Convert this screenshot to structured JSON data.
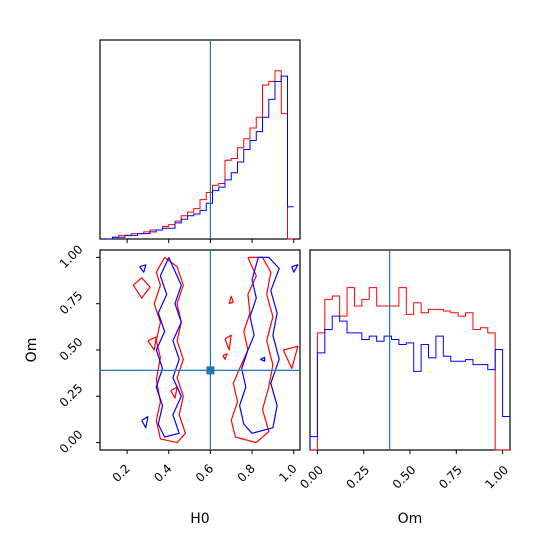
{
  "chart_data": [
    {
      "id": "H0-marginal",
      "type": "histogram",
      "xlabel": "",
      "ylabel": "",
      "xlim": [
        0.07,
        1.03
      ],
      "truth": 0.6,
      "truth_color": "#1f77b4",
      "bin_edges": [
        0.1,
        0.13,
        0.16,
        0.19,
        0.22,
        0.25,
        0.28,
        0.31,
        0.34,
        0.37,
        0.4,
        0.43,
        0.46,
        0.49,
        0.52,
        0.55,
        0.58,
        0.61,
        0.64,
        0.67,
        0.7,
        0.73,
        0.76,
        0.79,
        0.82,
        0.85,
        0.88,
        0.91,
        0.94,
        0.97,
        1.0
      ],
      "series": [
        {
          "color": "#ff0000",
          "values": [
            0.0,
            0.01,
            0.02,
            0.02,
            0.03,
            0.03,
            0.04,
            0.05,
            0.05,
            0.07,
            0.08,
            0.1,
            0.13,
            0.15,
            0.17,
            0.22,
            0.26,
            0.3,
            0.31,
            0.44,
            0.45,
            0.51,
            0.56,
            0.62,
            0.68,
            0.86,
            0.88,
            0.94,
            0.7,
            0.0
          ]
        },
        {
          "color": "#0000ff",
          "values": [
            0.0,
            0.01,
            0.01,
            0.02,
            0.02,
            0.03,
            0.03,
            0.04,
            0.05,
            0.06,
            0.06,
            0.09,
            0.11,
            0.13,
            0.14,
            0.16,
            0.2,
            0.27,
            0.29,
            0.33,
            0.37,
            0.43,
            0.5,
            0.55,
            0.6,
            0.68,
            0.78,
            0.88,
            0.91,
            0.18
          ]
        }
      ]
    },
    {
      "id": "H0-Om-joint",
      "type": "contour",
      "xlabel": "H0",
      "ylabel": "Om",
      "xlim": [
        0.07,
        1.03
      ],
      "ylim": [
        -0.04,
        1.04
      ],
      "xticks": [
        "0.2",
        "0.4",
        "0.6",
        "0.8",
        "1.0"
      ],
      "yticks": [
        "0.00",
        "0.25",
        "0.50",
        "0.75",
        "1.00"
      ],
      "truth": {
        "x": 0.6,
        "y": 0.39
      },
      "truth_color": "#1f77b4",
      "series": [
        {
          "color": "#ff0000",
          "contours": [
            [
              [
                0.38,
                1.0
              ],
              [
                0.34,
                0.92
              ],
              [
                0.36,
                0.85
              ],
              [
                0.33,
                0.75
              ],
              [
                0.36,
                0.65
              ],
              [
                0.34,
                0.55
              ],
              [
                0.36,
                0.46
              ],
              [
                0.34,
                0.34
              ],
              [
                0.36,
                0.22
              ],
              [
                0.34,
                0.12
              ],
              [
                0.36,
                0.02
              ],
              [
                0.44,
                0.0
              ],
              [
                0.48,
                0.05
              ],
              [
                0.45,
                0.15
              ],
              [
                0.47,
                0.25
              ],
              [
                0.44,
                0.35
              ],
              [
                0.47,
                0.45
              ],
              [
                0.44,
                0.55
              ],
              [
                0.46,
                0.65
              ],
              [
                0.44,
                0.75
              ],
              [
                0.47,
                0.85
              ],
              [
                0.44,
                0.95
              ],
              [
                0.38,
                1.0
              ]
            ],
            [
              [
                0.78,
                1.0
              ],
              [
                0.82,
                0.9
              ],
              [
                0.78,
                0.8
              ],
              [
                0.79,
                0.7
              ],
              [
                0.76,
                0.6
              ],
              [
                0.78,
                0.5
              ],
              [
                0.74,
                0.4
              ],
              [
                0.71,
                0.32
              ],
              [
                0.73,
                0.22
              ],
              [
                0.7,
                0.12
              ],
              [
                0.72,
                0.03
              ],
              [
                0.82,
                0.0
              ],
              [
                0.88,
                0.06
              ],
              [
                0.85,
                0.18
              ],
              [
                0.88,
                0.3
              ],
              [
                0.9,
                0.42
              ],
              [
                0.87,
                0.55
              ],
              [
                0.9,
                0.68
              ],
              [
                0.87,
                0.8
              ],
              [
                0.89,
                0.92
              ],
              [
                0.85,
                1.0
              ],
              [
                0.78,
                1.0
              ]
            ],
            [
              [
                0.23,
                0.85
              ],
              [
                0.27,
                0.78
              ],
              [
                0.31,
                0.84
              ],
              [
                0.27,
                0.89
              ],
              [
                0.23,
                0.85
              ]
            ],
            [
              [
                0.3,
                0.55
              ],
              [
                0.33,
                0.5
              ],
              [
                0.34,
                0.57
              ],
              [
                0.3,
                0.55
              ]
            ],
            [
              [
                0.67,
                0.56
              ],
              [
                0.69,
                0.5
              ],
              [
                0.7,
                0.58
              ],
              [
                0.67,
                0.56
              ]
            ],
            [
              [
                0.69,
                0.75
              ],
              [
                0.7,
                0.79
              ],
              [
                0.71,
                0.76
              ],
              [
                0.69,
                0.75
              ]
            ],
            [
              [
                0.41,
                0.28
              ],
              [
                0.43,
                0.24
              ],
              [
                0.44,
                0.3
              ],
              [
                0.41,
                0.28
              ]
            ],
            [
              [
                0.66,
                0.47
              ],
              [
                0.67,
                0.45
              ],
              [
                0.68,
                0.48
              ],
              [
                0.66,
                0.47
              ]
            ],
            [
              [
                0.95,
                0.5
              ],
              [
                0.99,
                0.4
              ],
              [
                1.02,
                0.52
              ],
              [
                0.95,
                0.5
              ]
            ]
          ]
        },
        {
          "color": "#0000ff",
          "contours": [
            [
              [
                0.4,
                1.0
              ],
              [
                0.36,
                0.9
              ],
              [
                0.39,
                0.8
              ],
              [
                0.35,
                0.7
              ],
              [
                0.38,
                0.6
              ],
              [
                0.34,
                0.5
              ],
              [
                0.37,
                0.4
              ],
              [
                0.34,
                0.3
              ],
              [
                0.37,
                0.2
              ],
              [
                0.35,
                0.1
              ],
              [
                0.38,
                0.03
              ],
              [
                0.45,
                0.05
              ],
              [
                0.42,
                0.15
              ],
              [
                0.46,
                0.25
              ],
              [
                0.42,
                0.35
              ],
              [
                0.45,
                0.45
              ],
              [
                0.42,
                0.55
              ],
              [
                0.46,
                0.65
              ],
              [
                0.43,
                0.75
              ],
              [
                0.46,
                0.85
              ],
              [
                0.42,
                0.95
              ],
              [
                0.4,
                1.0
              ]
            ],
            [
              [
                0.83,
                1.0
              ],
              [
                0.8,
                0.88
              ],
              [
                0.82,
                0.78
              ],
              [
                0.79,
                0.68
              ],
              [
                0.81,
                0.58
              ],
              [
                0.78,
                0.5
              ],
              [
                0.75,
                0.4
              ],
              [
                0.77,
                0.3
              ],
              [
                0.74,
                0.2
              ],
              [
                0.76,
                0.1
              ],
              [
                0.8,
                0.05
              ],
              [
                0.9,
                0.08
              ],
              [
                0.92,
                0.2
              ],
              [
                0.89,
                0.32
              ],
              [
                0.93,
                0.45
              ],
              [
                0.9,
                0.58
              ],
              [
                0.92,
                0.7
              ],
              [
                0.89,
                0.82
              ],
              [
                0.93,
                0.94
              ],
              [
                0.88,
                1.0
              ],
              [
                0.83,
                1.0
              ]
            ],
            [
              [
                0.26,
                0.95
              ],
              [
                0.28,
                0.92
              ],
              [
                0.29,
                0.96
              ],
              [
                0.26,
                0.95
              ]
            ],
            [
              [
                0.27,
                0.12
              ],
              [
                0.29,
                0.08
              ],
              [
                0.3,
                0.14
              ],
              [
                0.27,
                0.12
              ]
            ],
            [
              [
                0.84,
                0.45
              ],
              [
                0.86,
                0.44
              ],
              [
                0.86,
                0.46
              ],
              [
                0.84,
                0.45
              ]
            ],
            [
              [
                0.99,
                0.95
              ],
              [
                1.0,
                0.92
              ],
              [
                1.02,
                0.96
              ],
              [
                0.99,
                0.95
              ]
            ]
          ]
        }
      ]
    },
    {
      "id": "Om-marginal",
      "type": "histogram",
      "xlabel": "Om",
      "ylabel": "",
      "xlim": [
        -0.04,
        1.04
      ],
      "xticks": [
        "0.00",
        "0.25",
        "0.50",
        "0.75",
        "1.00"
      ],
      "truth": 0.39,
      "truth_color": "#1f77b4",
      "bin_edges": [
        -0.04,
        0.0,
        0.04,
        0.08,
        0.12,
        0.16,
        0.2,
        0.24,
        0.28,
        0.32,
        0.36,
        0.4,
        0.44,
        0.48,
        0.52,
        0.56,
        0.6,
        0.64,
        0.68,
        0.72,
        0.76,
        0.8,
        0.84,
        0.88,
        0.92,
        0.96,
        1.0,
        1.04
      ],
      "series": [
        {
          "color": "#ff0000",
          "values": [
            0,
            0.7,
            0.9,
            0.92,
            0.8,
            0.97,
            0.86,
            0.9,
            0.97,
            0.86,
            0.86,
            0.86,
            0.97,
            0.81,
            0.88,
            0.82,
            0.84,
            0.84,
            0.83,
            0.82,
            0.8,
            0.82,
            0.72,
            0.73,
            0.7,
            0.0,
            0
          ]
        },
        {
          "color": "#0000ff",
          "values": [
            0.08,
            0.58,
            0.72,
            0.8,
            0.77,
            0.7,
            0.7,
            0.66,
            0.68,
            0.65,
            0.68,
            0.66,
            0.63,
            0.64,
            0.47,
            0.63,
            0.55,
            0.68,
            0.56,
            0.53,
            0.53,
            0.54,
            0.51,
            0.51,
            0.48,
            0.6,
            0.2
          ]
        }
      ]
    }
  ]
}
